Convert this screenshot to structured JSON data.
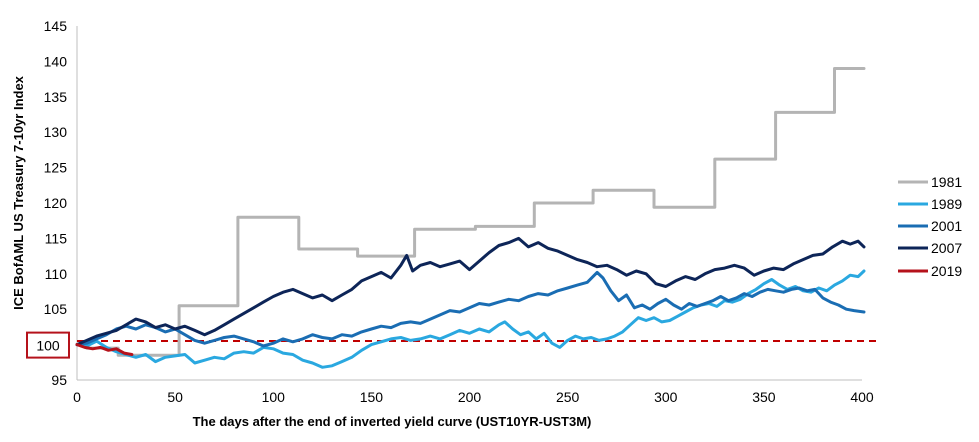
{
  "chart_data": {
    "type": "line",
    "title": "",
    "xlabel": "The days after the end of inverted yield curve (UST10YR-UST3M)",
    "ylabel": "ICE BofAML US Treasury 7-10yr Index",
    "xlim": [
      0,
      400
    ],
    "ylim": [
      95,
      145
    ],
    "x_ticks": [
      0,
      50,
      100,
      150,
      200,
      250,
      300,
      350,
      400
    ],
    "y_ticks": [
      95,
      100,
      105,
      110,
      115,
      120,
      125,
      130,
      135,
      140,
      145
    ],
    "grid": false,
    "legend_position": "right",
    "highlight_label": "100",
    "reference_line": {
      "y": 100.5,
      "style": "dashed",
      "color": "#c00000"
    },
    "series": [
      {
        "name": "1981",
        "color": "#b4b4b4",
        "points": [
          [
            0,
            100
          ],
          [
            5,
            100
          ],
          [
            5,
            99.5
          ],
          [
            21,
            99.5
          ],
          [
            21,
            98.5
          ],
          [
            52,
            98.5
          ],
          [
            52,
            105.5
          ],
          [
            82,
            105.5
          ],
          [
            82,
            118
          ],
          [
            113,
            118
          ],
          [
            113,
            113.5
          ],
          [
            143,
            113.5
          ],
          [
            143,
            112.5
          ],
          [
            172,
            112.5
          ],
          [
            172,
            116.3
          ],
          [
            203,
            116.3
          ],
          [
            203,
            116.7
          ],
          [
            233,
            116.7
          ],
          [
            233,
            120
          ],
          [
            263,
            120
          ],
          [
            263,
            121.8
          ],
          [
            294,
            121.8
          ],
          [
            294,
            119.4
          ],
          [
            325,
            119.4
          ],
          [
            325,
            126.2
          ],
          [
            356,
            126.2
          ],
          [
            356,
            132.8
          ],
          [
            386,
            132.8
          ],
          [
            386,
            139
          ],
          [
            401,
            139
          ]
        ]
      },
      {
        "name": "1989",
        "color": "#2aa8e0",
        "points": [
          [
            0,
            100
          ],
          [
            5,
            99.8
          ],
          [
            10,
            100.5
          ],
          [
            15,
            99.6
          ],
          [
            20,
            99
          ],
          [
            25,
            98.6
          ],
          [
            30,
            98.2
          ],
          [
            35,
            98.6
          ],
          [
            40,
            97.6
          ],
          [
            45,
            98.2
          ],
          [
            50,
            98.4
          ],
          [
            55,
            98.6
          ],
          [
            60,
            97.4
          ],
          [
            65,
            97.8
          ],
          [
            70,
            98.2
          ],
          [
            75,
            98
          ],
          [
            80,
            98.8
          ],
          [
            85,
            99
          ],
          [
            90,
            98.8
          ],
          [
            95,
            99.6
          ],
          [
            100,
            99.4
          ],
          [
            105,
            98.8
          ],
          [
            110,
            98.6
          ],
          [
            115,
            97.8
          ],
          [
            120,
            97.4
          ],
          [
            125,
            96.8
          ],
          [
            130,
            97
          ],
          [
            135,
            97.6
          ],
          [
            140,
            98.2
          ],
          [
            145,
            99.2
          ],
          [
            150,
            100
          ],
          [
            155,
            100.4
          ],
          [
            160,
            100.8
          ],
          [
            165,
            101
          ],
          [
            170,
            100.6
          ],
          [
            175,
            100.8
          ],
          [
            180,
            101.2
          ],
          [
            185,
            100.8
          ],
          [
            190,
            101.4
          ],
          [
            195,
            102
          ],
          [
            200,
            101.6
          ],
          [
            205,
            102.2
          ],
          [
            210,
            101.8
          ],
          [
            215,
            102.8
          ],
          [
            218,
            103.2
          ],
          [
            222,
            102.2
          ],
          [
            226,
            101.4
          ],
          [
            230,
            101.8
          ],
          [
            234,
            100.8
          ],
          [
            238,
            101.6
          ],
          [
            242,
            100.2
          ],
          [
            246,
            99.6
          ],
          [
            250,
            100.6
          ],
          [
            254,
            101.2
          ],
          [
            258,
            100.8
          ],
          [
            262,
            101
          ],
          [
            266,
            100.6
          ],
          [
            270,
            100.8
          ],
          [
            274,
            101.2
          ],
          [
            278,
            101.8
          ],
          [
            282,
            102.8
          ],
          [
            286,
            103.8
          ],
          [
            290,
            103.4
          ],
          [
            294,
            103.8
          ],
          [
            298,
            103.2
          ],
          [
            302,
            103.4
          ],
          [
            306,
            104
          ],
          [
            310,
            104.6
          ],
          [
            314,
            105.2
          ],
          [
            318,
            105.6
          ],
          [
            322,
            105.8
          ],
          [
            326,
            105.4
          ],
          [
            330,
            106.2
          ],
          [
            334,
            106
          ],
          [
            338,
            106.4
          ],
          [
            342,
            107.2
          ],
          [
            346,
            107.8
          ],
          [
            350,
            108.6
          ],
          [
            354,
            109.2
          ],
          [
            358,
            108.4
          ],
          [
            362,
            107.8
          ],
          [
            366,
            108.2
          ],
          [
            370,
            107.6
          ],
          [
            374,
            107.4
          ],
          [
            378,
            108
          ],
          [
            382,
            107.6
          ],
          [
            386,
            108.4
          ],
          [
            390,
            109
          ],
          [
            394,
            109.8
          ],
          [
            398,
            109.6
          ],
          [
            401,
            110.4
          ]
        ]
      },
      {
        "name": "2001",
        "color": "#1a6db3",
        "points": [
          [
            0,
            100
          ],
          [
            5,
            100.2
          ],
          [
            10,
            100.8
          ],
          [
            15,
            101.4
          ],
          [
            20,
            102.2
          ],
          [
            25,
            102.6
          ],
          [
            30,
            102.2
          ],
          [
            35,
            102.8
          ],
          [
            40,
            102.4
          ],
          [
            45,
            101.8
          ],
          [
            50,
            102.2
          ],
          [
            55,
            101.4
          ],
          [
            60,
            100.6
          ],
          [
            65,
            100.2
          ],
          [
            70,
            100.6
          ],
          [
            75,
            101
          ],
          [
            80,
            101.2
          ],
          [
            85,
            100.8
          ],
          [
            90,
            100.4
          ],
          [
            95,
            99.8
          ],
          [
            100,
            100.2
          ],
          [
            105,
            100.8
          ],
          [
            110,
            100.4
          ],
          [
            115,
            100.8
          ],
          [
            120,
            101.4
          ],
          [
            125,
            101
          ],
          [
            130,
            100.8
          ],
          [
            135,
            101.4
          ],
          [
            140,
            101.2
          ],
          [
            145,
            101.8
          ],
          [
            150,
            102.2
          ],
          [
            155,
            102.6
          ],
          [
            160,
            102.4
          ],
          [
            165,
            103
          ],
          [
            170,
            103.2
          ],
          [
            175,
            103
          ],
          [
            180,
            103.6
          ],
          [
            185,
            104.2
          ],
          [
            190,
            104.8
          ],
          [
            195,
            104.6
          ],
          [
            200,
            105.2
          ],
          [
            205,
            105.8
          ],
          [
            210,
            105.6
          ],
          [
            215,
            106
          ],
          [
            220,
            106.4
          ],
          [
            225,
            106.2
          ],
          [
            230,
            106.8
          ],
          [
            235,
            107.2
          ],
          [
            240,
            107
          ],
          [
            245,
            107.6
          ],
          [
            250,
            108
          ],
          [
            255,
            108.4
          ],
          [
            260,
            108.8
          ],
          [
            265,
            110.2
          ],
          [
            268,
            109.4
          ],
          [
            272,
            107.6
          ],
          [
            276,
            106.2
          ],
          [
            280,
            107
          ],
          [
            284,
            105.2
          ],
          [
            288,
            105.6
          ],
          [
            292,
            105
          ],
          [
            296,
            105.8
          ],
          [
            300,
            106.4
          ],
          [
            304,
            105.6
          ],
          [
            308,
            105
          ],
          [
            312,
            105.8
          ],
          [
            316,
            105.4
          ],
          [
            320,
            105.8
          ],
          [
            324,
            106.2
          ],
          [
            328,
            106.8
          ],
          [
            332,
            106.2
          ],
          [
            336,
            106.6
          ],
          [
            340,
            107.2
          ],
          [
            344,
            106.8
          ],
          [
            348,
            107.4
          ],
          [
            352,
            107.8
          ],
          [
            356,
            107.6
          ],
          [
            360,
            107.4
          ],
          [
            364,
            107.8
          ],
          [
            368,
            108
          ],
          [
            372,
            107.6
          ],
          [
            376,
            107.8
          ],
          [
            380,
            106.6
          ],
          [
            384,
            106
          ],
          [
            388,
            105.6
          ],
          [
            392,
            105
          ],
          [
            396,
            104.8
          ],
          [
            401,
            104.6
          ]
        ]
      },
      {
        "name": "2007",
        "color": "#0d2558",
        "points": [
          [
            0,
            100
          ],
          [
            5,
            100.6
          ],
          [
            10,
            101.2
          ],
          [
            15,
            101.6
          ],
          [
            20,
            102
          ],
          [
            25,
            102.8
          ],
          [
            30,
            103.6
          ],
          [
            35,
            103.2
          ],
          [
            40,
            102.4
          ],
          [
            45,
            102.8
          ],
          [
            50,
            102.2
          ],
          [
            55,
            102.6
          ],
          [
            60,
            102
          ],
          [
            65,
            101.4
          ],
          [
            70,
            102
          ],
          [
            75,
            102.8
          ],
          [
            80,
            103.6
          ],
          [
            85,
            104.4
          ],
          [
            90,
            105.2
          ],
          [
            95,
            106
          ],
          [
            100,
            106.8
          ],
          [
            105,
            107.4
          ],
          [
            110,
            107.8
          ],
          [
            115,
            107.2
          ],
          [
            120,
            106.6
          ],
          [
            125,
            107
          ],
          [
            130,
            106.2
          ],
          [
            135,
            107
          ],
          [
            140,
            107.8
          ],
          [
            145,
            109
          ],
          [
            150,
            109.6
          ],
          [
            155,
            110.2
          ],
          [
            160,
            109.4
          ],
          [
            165,
            111.2
          ],
          [
            168,
            112.6
          ],
          [
            171,
            110.4
          ],
          [
            175,
            111.2
          ],
          [
            180,
            111.6
          ],
          [
            185,
            111
          ],
          [
            190,
            111.4
          ],
          [
            195,
            111.8
          ],
          [
            200,
            110.6
          ],
          [
            205,
            111.8
          ],
          [
            210,
            113
          ],
          [
            215,
            114
          ],
          [
            220,
            114.4
          ],
          [
            225,
            115
          ],
          [
            230,
            113.8
          ],
          [
            235,
            114.4
          ],
          [
            240,
            113.6
          ],
          [
            245,
            113.2
          ],
          [
            250,
            112.6
          ],
          [
            255,
            112
          ],
          [
            260,
            111.6
          ],
          [
            265,
            111
          ],
          [
            270,
            111.2
          ],
          [
            275,
            110.6
          ],
          [
            280,
            109.8
          ],
          [
            285,
            110.4
          ],
          [
            290,
            110
          ],
          [
            295,
            108.6
          ],
          [
            300,
            108.2
          ],
          [
            305,
            109
          ],
          [
            310,
            109.6
          ],
          [
            315,
            109.2
          ],
          [
            320,
            110
          ],
          [
            325,
            110.6
          ],
          [
            330,
            110.8
          ],
          [
            335,
            111.2
          ],
          [
            340,
            110.8
          ],
          [
            345,
            109.8
          ],
          [
            350,
            110.4
          ],
          [
            355,
            110.8
          ],
          [
            360,
            110.6
          ],
          [
            365,
            111.4
          ],
          [
            370,
            112
          ],
          [
            375,
            112.6
          ],
          [
            380,
            112.8
          ],
          [
            385,
            113.8
          ],
          [
            390,
            114.6
          ],
          [
            394,
            114.2
          ],
          [
            398,
            114.6
          ],
          [
            401,
            113.8
          ]
        ]
      },
      {
        "name": "2019",
        "color": "#b5121b",
        "points": [
          [
            0,
            100
          ],
          [
            4,
            99.6
          ],
          [
            8,
            99.4
          ],
          [
            12,
            99.6
          ],
          [
            16,
            99.2
          ],
          [
            20,
            99.4
          ],
          [
            24,
            98.8
          ],
          [
            28,
            98.6
          ]
        ]
      }
    ]
  }
}
